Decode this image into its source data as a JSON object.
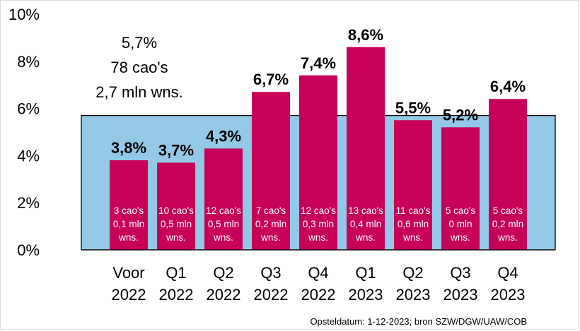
{
  "chart_data": {
    "type": "bar",
    "categories": [
      [
        "Voor",
        "2022"
      ],
      [
        "Q1",
        "2022"
      ],
      [
        "Q2",
        "2022"
      ],
      [
        "Q3",
        "2022"
      ],
      [
        "Q4",
        "2022"
      ],
      [
        "Q1",
        "2023"
      ],
      [
        "Q2",
        "2023"
      ],
      [
        "Q3",
        "2023"
      ],
      [
        "Q4",
        "2023"
      ]
    ],
    "values": [
      3.8,
      3.7,
      4.3,
      6.7,
      7.4,
      8.6,
      5.5,
      5.2,
      6.4
    ],
    "value_labels": [
      "3,8%",
      "3,7%",
      "4,3%",
      "6,7%",
      "7,4%",
      "8,6%",
      "5,5%",
      "5,2%",
      "6,4%"
    ],
    "bar_notes": [
      [
        "3 cao's",
        "0,1 mln",
        "wns."
      ],
      [
        "10 cao's",
        "0,5 mln",
        "wns."
      ],
      [
        "12 cao's",
        "0,5 mln",
        "wns."
      ],
      [
        "7 cao's",
        "0,2 mln",
        "wns."
      ],
      [
        "12 cao's",
        "0,3 mln",
        "wns."
      ],
      [
        "13 cao's",
        "0,4 mln",
        "wns."
      ],
      [
        "11 cao's",
        "0,6 mln",
        "wns."
      ],
      [
        "5 cao's",
        "0 mln",
        "wns."
      ],
      [
        "5 cao's",
        "0,2 mln",
        "wns."
      ]
    ],
    "average": {
      "value": 5.7,
      "label_lines": [
        "5,7%",
        "78 cao's",
        "2,7 mln wns."
      ]
    },
    "y_ticks": [
      "0%",
      "2%",
      "4%",
      "6%",
      "8%",
      "10%"
    ],
    "ylim": [
      0,
      10
    ],
    "grid": false,
    "source": "Opsteldatum: 1-12-2023; bron SZW/DGW/UAW/COB",
    "colors": {
      "bar": "#c70059",
      "average_area": "#93c9e7"
    }
  }
}
